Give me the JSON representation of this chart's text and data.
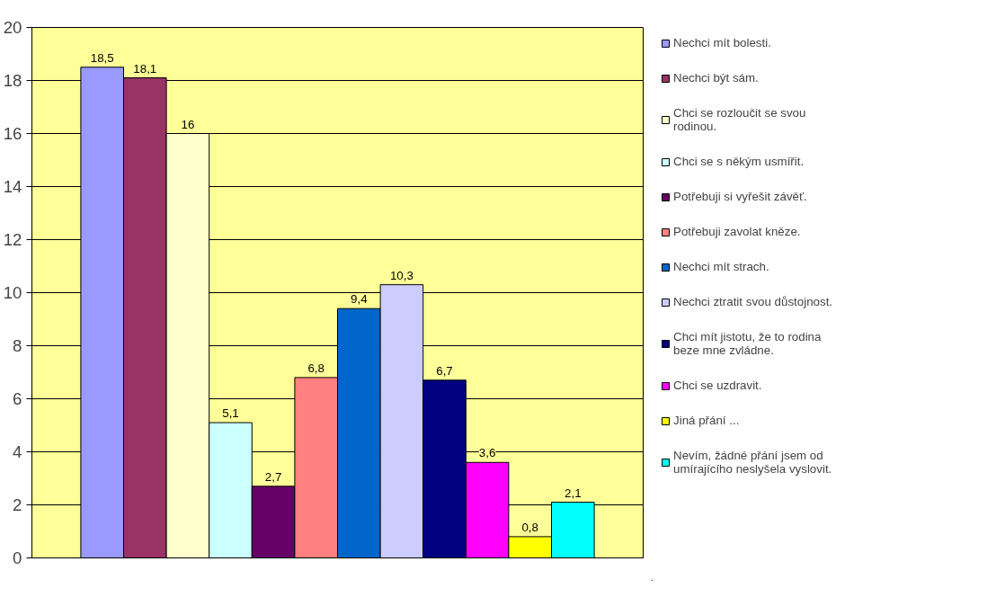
{
  "chart_data": {
    "type": "bar",
    "categories": [
      null
    ],
    "series": [
      {
        "name": "Nechci mít bolesti.",
        "color": "#9999ff",
        "values": [
          18.5
        ],
        "value_labels": [
          "18,5"
        ]
      },
      {
        "name": "Nechci být sám.",
        "color": "#993366",
        "values": [
          18.1
        ],
        "value_labels": [
          "18,1"
        ]
      },
      {
        "name": "Chci se rozloučit se svou rodinou.",
        "color": "#ffffcc",
        "values": [
          16
        ],
        "value_labels": [
          "16"
        ]
      },
      {
        "name": "Chci se s někým usmířit.",
        "color": "#ccffff",
        "values": [
          5.1
        ],
        "value_labels": [
          "5,1"
        ]
      },
      {
        "name": "Potřebuji si vyřešit závěť.",
        "color": "#660066",
        "values": [
          2.7
        ],
        "value_labels": [
          "2,7"
        ]
      },
      {
        "name": "Potřebuji zavolat kněze.",
        "color": "#ff8080",
        "values": [
          6.8
        ],
        "value_labels": [
          "6,8"
        ]
      },
      {
        "name": "Nechci mít strach.",
        "color": "#0066cc",
        "values": [
          9.4
        ],
        "value_labels": [
          "9,4"
        ]
      },
      {
        "name": "Nechci ztratit svou důstojnost.",
        "color": "#ccccff",
        "values": [
          10.3
        ],
        "value_labels": [
          "10,3"
        ]
      },
      {
        "name": "Chci mít jistotu, že to rodina beze mne zvládne.",
        "color": "#000080",
        "values": [
          6.7
        ],
        "value_labels": [
          "6,7"
        ]
      },
      {
        "name": "Chci se uzdravit.",
        "color": "#ff00ff",
        "values": [
          3.6
        ],
        "value_labels": [
          "3,6"
        ]
      },
      {
        "name": "Jiná přání ...",
        "color": "#ffff00",
        "values": [
          0.8
        ],
        "value_labels": [
          "0,8"
        ]
      },
      {
        "name": "Nevím, žádné přání jsem od umírajícího neslyšela vyslovit.",
        "color": "#00ffff",
        "values": [
          2.1
        ],
        "value_labels": [
          "2,1"
        ]
      }
    ],
    "ylim": [
      0,
      20
    ],
    "yticks": [
      0,
      2,
      4,
      6,
      8,
      10,
      12,
      14,
      16,
      18,
      20
    ],
    "grid": "y",
    "legend": "right",
    "tick_labels": "y"
  }
}
